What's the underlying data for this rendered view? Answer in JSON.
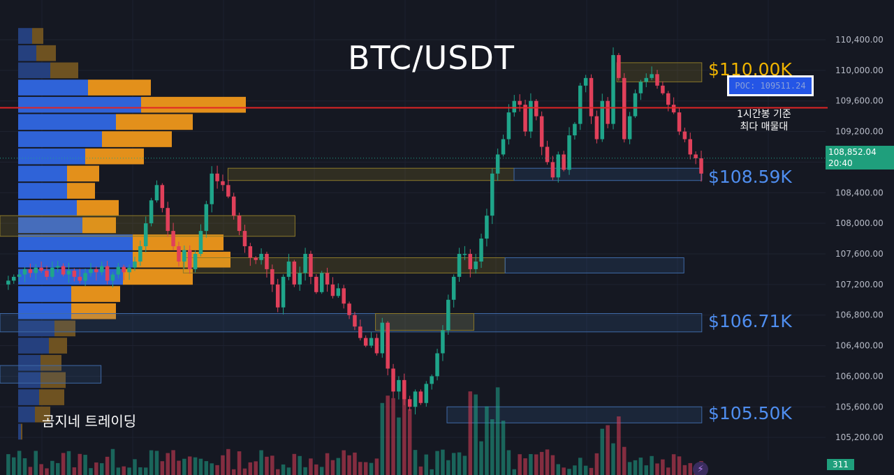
{
  "chart_data": {
    "type": "candlestick",
    "title": "BTC/USDT",
    "watermark": "곰지네 트레이딩",
    "ylim": [
      104900,
      110920
    ],
    "y_ticks": [
      {
        "value": 110400,
        "label": "110,400.00"
      },
      {
        "value": 110000,
        "label": "110,000.00"
      },
      {
        "value": 109600,
        "label": "109,600.00"
      },
      {
        "value": 109200,
        "label": "109,200.00"
      },
      {
        "value": 108800,
        "label": "108,800.00"
      },
      {
        "value": 108400,
        "label": "108,400.00"
      },
      {
        "value": 108000,
        "label": "108,000.00"
      },
      {
        "value": 107600,
        "label": "107,600.00"
      },
      {
        "value": 107200,
        "label": "107,200.00"
      },
      {
        "value": 106800,
        "label": "106,800.00"
      },
      {
        "value": 106400,
        "label": "106,400.00"
      },
      {
        "value": 106000,
        "label": "106,000.00"
      },
      {
        "value": 105600,
        "label": "105,600.00"
      },
      {
        "value": 105200,
        "label": "105,200.00"
      }
    ],
    "levels": [
      {
        "label": "$110.00K",
        "value": 110000,
        "color": "#f0b400"
      },
      {
        "label": "$108.59K",
        "value": 108590,
        "color": "#4f8ef0"
      },
      {
        "label": "$106.71K",
        "value": 106710,
        "color": "#4f8ef0"
      },
      {
        "label": "$105.50K",
        "value": 105500,
        "color": "#4f8ef0"
      }
    ],
    "poc": {
      "label": "POC: 109511.24",
      "value": 109511.24,
      "color": "#e02424",
      "note_line1": "1시간봉 기준",
      "note_line2": "최다 매물대"
    },
    "current_price": {
      "value": 108852.04,
      "label": "108,852.04",
      "time": "20:40"
    },
    "volume_badge": "311",
    "zones": [
      {
        "y1": 110100,
        "y2": 109850,
        "x1": 0.69,
        "x2": 0.785,
        "kind": "supply"
      },
      {
        "y1": 108720,
        "y2": 108560,
        "x1": 0.255,
        "x2": 0.575,
        "kind": "supply"
      },
      {
        "y1": 108720,
        "y2": 108560,
        "x1": 0.575,
        "x2": 0.785,
        "kind": "demand"
      },
      {
        "y1": 108100,
        "y2": 107830,
        "x1": 0.0,
        "x2": 0.33,
        "kind": "supply"
      },
      {
        "y1": 107550,
        "y2": 107350,
        "x1": 0.205,
        "x2": 0.565,
        "kind": "supply"
      },
      {
        "y1": 107550,
        "y2": 107350,
        "x1": 0.565,
        "x2": 0.765,
        "kind": "demand"
      },
      {
        "y1": 106820,
        "y2": 106580,
        "x1": 0.0,
        "x2": 0.785,
        "kind": "demand"
      },
      {
        "y1": 106820,
        "y2": 106600,
        "x1": 0.42,
        "x2": 0.53,
        "kind": "supply"
      },
      {
        "y1": 106140,
        "y2": 105910,
        "x1": 0.0,
        "x2": 0.113,
        "kind": "demand"
      },
      {
        "y1": 105600,
        "y2": 105390,
        "x1": 0.5,
        "x2": 0.785,
        "kind": "demand"
      }
    ],
    "volume_profile": [
      {
        "price": 110450,
        "buy": 1.0,
        "sell": 0.8
      },
      {
        "price": 110225,
        "buy": 1.3,
        "sell": 1.4
      },
      {
        "price": 110000,
        "buy": 2.3,
        "sell": 2.0
      },
      {
        "price": 109775,
        "buy": 5.0,
        "sell": 4.5
      },
      {
        "price": 109550,
        "buy": 8.8,
        "sell": 7.5
      },
      {
        "price": 109325,
        "buy": 7.0,
        "sell": 5.5
      },
      {
        "price": 109100,
        "buy": 6.0,
        "sell": 5.0
      },
      {
        "price": 108875,
        "buy": 4.8,
        "sell": 4.2
      },
      {
        "price": 108650,
        "buy": 3.5,
        "sell": 2.3
      },
      {
        "price": 108425,
        "buy": 3.5,
        "sell": 2.0
      },
      {
        "price": 108200,
        "buy": 4.2,
        "sell": 3.0
      },
      {
        "price": 107975,
        "buy": 4.6,
        "sell": 2.4
      },
      {
        "price": 107750,
        "buy": 8.2,
        "sell": 6.5
      },
      {
        "price": 107525,
        "buy": 8.2,
        "sell": 7.0
      },
      {
        "price": 107300,
        "buy": 7.5,
        "sell": 5.0
      },
      {
        "price": 107075,
        "buy": 3.8,
        "sell": 3.5
      },
      {
        "price": 106850,
        "buy": 3.8,
        "sell": 3.2
      },
      {
        "price": 106625,
        "buy": 2.6,
        "sell": 1.5
      },
      {
        "price": 106400,
        "buy": 2.2,
        "sell": 1.3
      },
      {
        "price": 106175,
        "buy": 1.6,
        "sell": 1.5
      },
      {
        "price": 105950,
        "buy": 1.6,
        "sell": 1.8
      },
      {
        "price": 105725,
        "buy": 1.5,
        "sell": 1.8
      },
      {
        "price": 105500,
        "buy": 1.2,
        "sell": 1.1
      },
      {
        "price": 105275,
        "buy": 0.2,
        "sell": 0.1
      }
    ],
    "close_path": [
      107200,
      107250,
      107300,
      107330,
      107400,
      107350,
      107420,
      107380,
      107300,
      107420,
      107440,
      107330,
      107380,
      107300,
      107250,
      107350,
      107400,
      107360,
      107440,
      107250,
      107330,
      107430,
      107360,
      107420,
      107500,
      107700,
      108000,
      108300,
      108500,
      108200,
      107900,
      107700,
      107500,
      107650,
      107400,
      107600,
      107900,
      108250,
      108650,
      108550,
      108500,
      108350,
      108100,
      107900,
      107700,
      107550,
      107520,
      107600,
      107400,
      107200,
      106900,
      107300,
      107500,
      107200,
      107350,
      107600,
      107300,
      107100,
      107350,
      107200,
      107050,
      107150,
      106950,
      106800,
      106650,
      106500,
      106400,
      106500,
      106300,
      106700,
      106100,
      105800,
      105950,
      105700,
      105600,
      105800,
      105650,
      105900,
      106000,
      106300,
      106600,
      107000,
      107300,
      107600,
      107600,
      107400,
      107500,
      107800,
      108100,
      108650,
      108900,
      109100,
      109450,
      109600,
      109550,
      109200,
      109600,
      109400,
      109000,
      108800,
      108600,
      108900,
      108700,
      109150,
      109300,
      109800,
      109900,
      109400,
      109100,
      109600,
      109300,
      110200,
      109900,
      109100,
      109400,
      109700,
      109850,
      109900,
      109950,
      109800,
      109700,
      109550,
      109450,
      109200,
      109100,
      108900,
      108850,
      108650
    ]
  }
}
